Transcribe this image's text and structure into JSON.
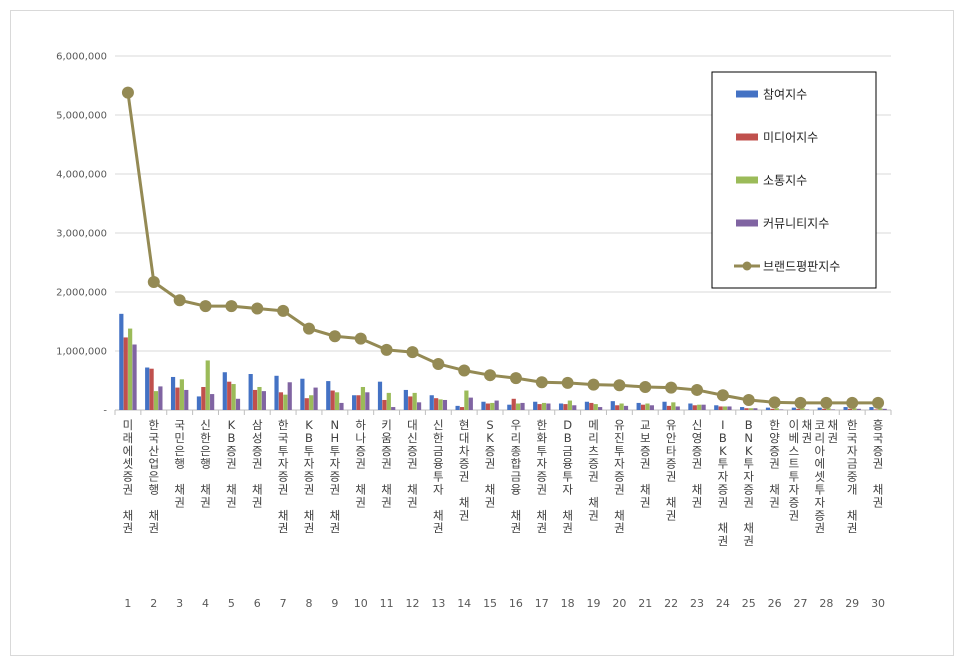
{
  "chart_data": {
    "type": "bar",
    "title": "",
    "xlabel": "",
    "ylabel": "",
    "ylim": [
      0,
      6000000
    ],
    "yticks": [
      {
        "value": 0,
        "label": "-"
      },
      {
        "value": 1000000,
        "label": "1,000,000"
      },
      {
        "value": 2000000,
        "label": "2,000,000"
      },
      {
        "value": 3000000,
        "label": "3,000,000"
      },
      {
        "value": 4000000,
        "label": "4,000,000"
      },
      {
        "value": 5000000,
        "label": "5,000,000"
      },
      {
        "value": 6000000,
        "label": "6,000,000"
      }
    ],
    "grid": true,
    "legend_position": "top-right",
    "ranks": [
      "1",
      "2",
      "3",
      "4",
      "5",
      "6",
      "7",
      "8",
      "9",
      "10",
      "11",
      "12",
      "13",
      "14",
      "15",
      "16",
      "17",
      "18",
      "19",
      "20",
      "21",
      "22",
      "23",
      "24",
      "25",
      "26",
      "27",
      "28",
      "29",
      "30"
    ],
    "categories": [
      [
        "미래에셋증권 채권"
      ],
      [
        "한국산업은행 채권"
      ],
      [
        "국민은행 채권"
      ],
      [
        "신한은행 채권"
      ],
      [
        "KB증권 채권"
      ],
      [
        "삼성증권 채권"
      ],
      [
        "한국투자증권 채권"
      ],
      [
        "KB투자증권 채권"
      ],
      [
        "NH투자증권 채권"
      ],
      [
        "하나증권 채권"
      ],
      [
        "키움증권 채권"
      ],
      [
        "대신증권 채권"
      ],
      [
        "신한금융투자 채권"
      ],
      [
        "현대차증권 채권"
      ],
      [
        "SK증권 채권"
      ],
      [
        "우리종합금융 채권"
      ],
      [
        "한화투자증권 채권"
      ],
      [
        "DB금융투자 채권"
      ],
      [
        "메리츠증권 채권"
      ],
      [
        "유진투자증권 채권"
      ],
      [
        "교보증권 채권"
      ],
      [
        "유안타증권 채권"
      ],
      [
        "신영증권 채권"
      ],
      [
        "IBK투자증권 채권"
      ],
      [
        "BNK투자증권 채권"
      ],
      [
        "한양증권 채권"
      ],
      [
        "이베스트투자증권",
        "채권"
      ],
      [
        "코리아에셋투자증권",
        "채권"
      ],
      [
        "한국자금중개 채권"
      ],
      [
        "흥국증권 채권"
      ]
    ],
    "series": [
      {
        "name": "참여지수",
        "kind": "bar",
        "color": "#4472c4",
        "values": [
          1630000,
          720000,
          560000,
          230000,
          640000,
          610000,
          580000,
          530000,
          490000,
          250000,
          480000,
          340000,
          250000,
          70000,
          140000,
          90000,
          140000,
          110000,
          140000,
          150000,
          120000,
          140000,
          110000,
          80000,
          50000,
          40000,
          40000,
          40000,
          50000,
          50000
        ]
      },
      {
        "name": "미디어지수",
        "kind": "bar",
        "color": "#c0504d",
        "values": [
          1230000,
          700000,
          380000,
          390000,
          480000,
          340000,
          300000,
          200000,
          330000,
          250000,
          170000,
          230000,
          200000,
          50000,
          110000,
          190000,
          100000,
          100000,
          120000,
          80000,
          90000,
          70000,
          80000,
          60000,
          30000,
          20000,
          20000,
          20000,
          20000,
          10000
        ]
      },
      {
        "name": "소통지수",
        "kind": "bar",
        "color": "#9bbb59",
        "values": [
          1380000,
          320000,
          520000,
          840000,
          440000,
          390000,
          260000,
          250000,
          300000,
          390000,
          290000,
          290000,
          180000,
          330000,
          120000,
          110000,
          120000,
          160000,
          100000,
          110000,
          110000,
          130000,
          90000,
          60000,
          30000,
          30000,
          30000,
          30000,
          30000,
          30000
        ]
      },
      {
        "name": "커뮤니티지수",
        "kind": "bar",
        "color": "#8064a2",
        "values": [
          1110000,
          400000,
          340000,
          270000,
          190000,
          320000,
          470000,
          380000,
          120000,
          300000,
          50000,
          130000,
          170000,
          210000,
          160000,
          120000,
          110000,
          80000,
          50000,
          70000,
          80000,
          60000,
          90000,
          60000,
          30000,
          10000,
          10000,
          10000,
          20000,
          20000
        ]
      },
      {
        "name": "브랜드평판지수",
        "kind": "line",
        "color": "#948a54",
        "values": [
          5380000,
          2170000,
          1860000,
          1760000,
          1760000,
          1720000,
          1680000,
          1380000,
          1250000,
          1210000,
          1020000,
          980000,
          780000,
          670000,
          590000,
          540000,
          470000,
          460000,
          430000,
          420000,
          390000,
          380000,
          340000,
          250000,
          170000,
          130000,
          120000,
          120000,
          120000,
          120000
        ]
      }
    ]
  }
}
